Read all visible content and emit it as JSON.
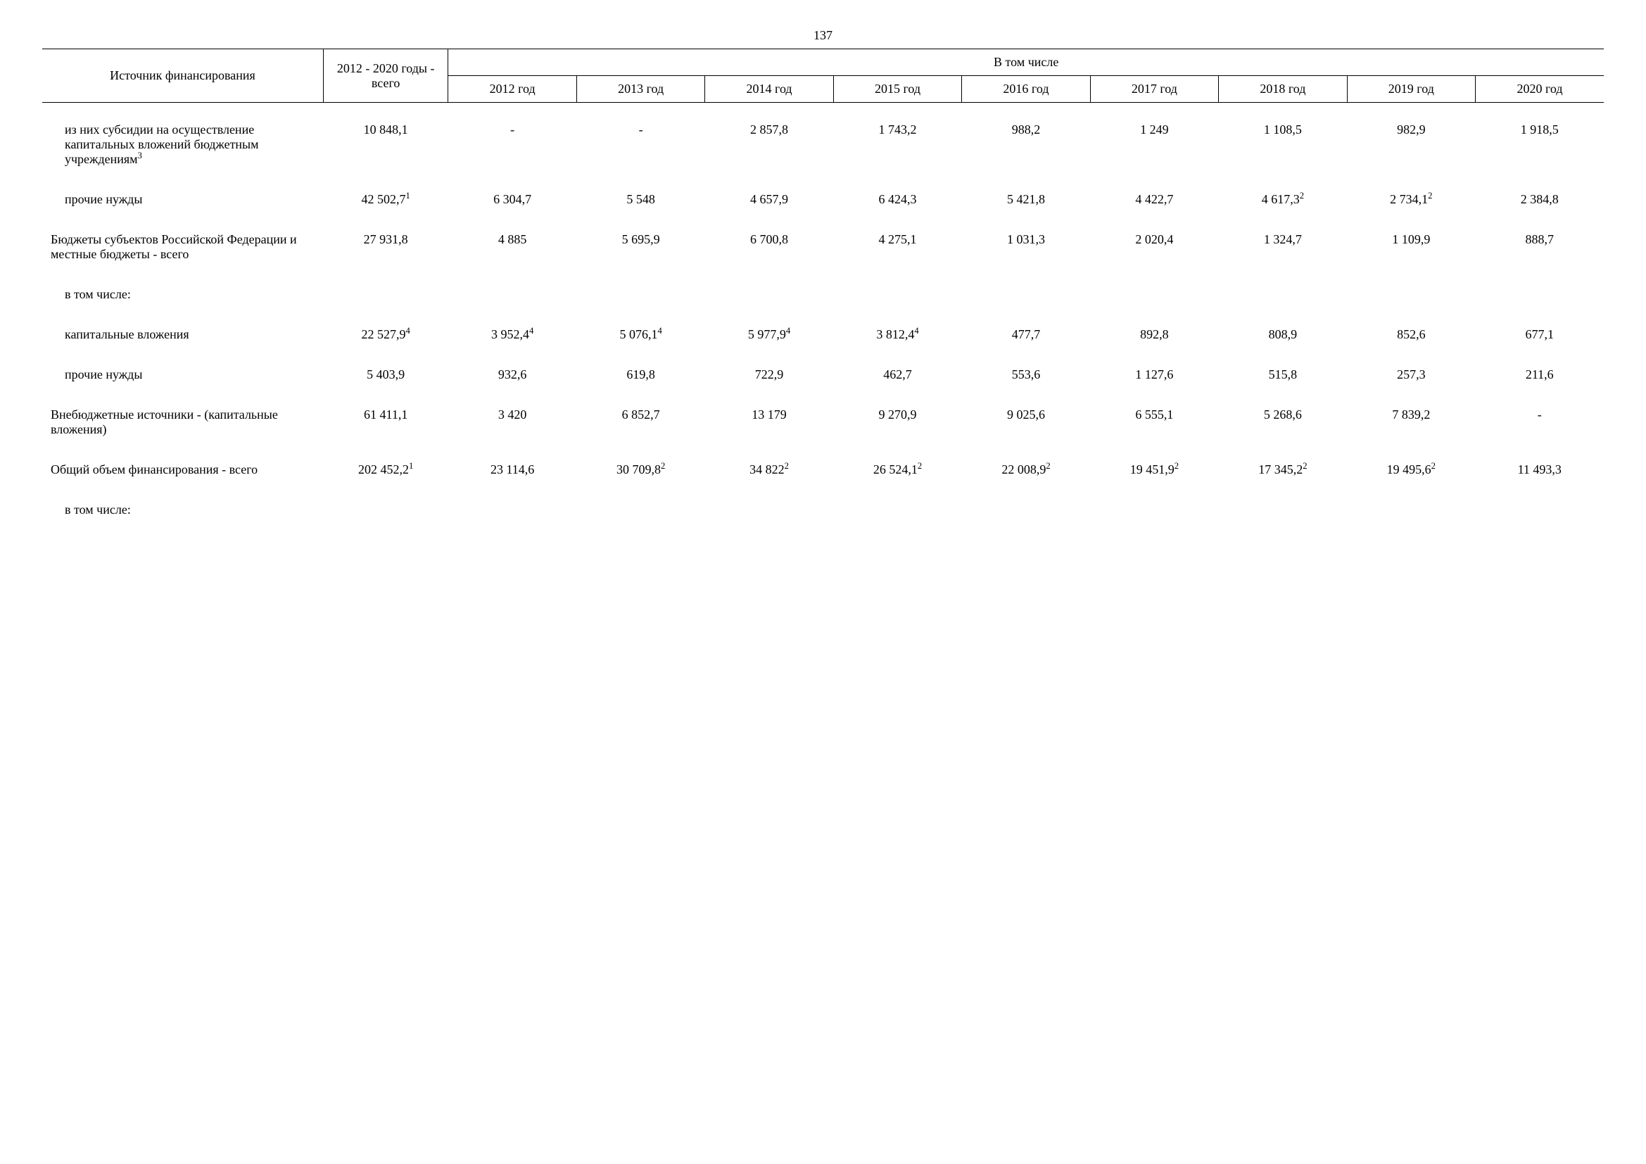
{
  "page_number": "137",
  "header": {
    "source_col": "Источник финансирования",
    "total_col": "2012 - 2020 годы - всего",
    "group_label": "В том числе",
    "years": [
      "2012 год",
      "2013 год",
      "2014 год",
      "2015 год",
      "2016 год",
      "2017 год",
      "2018 год",
      "2019 год",
      "2020 год"
    ]
  },
  "rows": [
    {
      "label": "из них субсидии на осуществление капитальных вложений бюджетным учреждениям",
      "label_sup": "3",
      "indent": 1,
      "cells": [
        {
          "v": "10 848,1"
        },
        {
          "v": "-"
        },
        {
          "v": "-"
        },
        {
          "v": "2 857,8"
        },
        {
          "v": "1 743,2"
        },
        {
          "v": "988,2"
        },
        {
          "v": "1 249"
        },
        {
          "v": "1 108,5"
        },
        {
          "v": "982,9"
        },
        {
          "v": "1 918,5"
        }
      ]
    },
    {
      "label": "прочие нужды",
      "indent": 1,
      "cells": [
        {
          "v": "42 502,7",
          "sup": "1"
        },
        {
          "v": "6 304,7"
        },
        {
          "v": "5 548"
        },
        {
          "v": "4 657,9"
        },
        {
          "v": "6 424,3"
        },
        {
          "v": "5 421,8"
        },
        {
          "v": "4 422,7"
        },
        {
          "v": "4 617,3",
          "sup": "2"
        },
        {
          "v": "2 734,1",
          "sup": "2"
        },
        {
          "v": "2 384,8"
        }
      ]
    },
    {
      "label": "Бюджеты субъектов Российской Федерации и местные бюджеты - всего",
      "indent": 0,
      "cells": [
        {
          "v": "27 931,8"
        },
        {
          "v": "4 885"
        },
        {
          "v": "5 695,9"
        },
        {
          "v": "6 700,8"
        },
        {
          "v": "4 275,1"
        },
        {
          "v": "1 031,3"
        },
        {
          "v": "2 020,4"
        },
        {
          "v": "1 324,7"
        },
        {
          "v": "1 109,9"
        },
        {
          "v": "888,7"
        }
      ]
    },
    {
      "label": "в том числе:",
      "indent": 1,
      "cells": []
    },
    {
      "label": "капитальные вложения",
      "indent": 1,
      "cells": [
        {
          "v": "22 527,9",
          "sup": "4"
        },
        {
          "v": "3 952,4",
          "sup": "4"
        },
        {
          "v": "5 076,1",
          "sup": "4"
        },
        {
          "v": "5 977,9",
          "sup": "4"
        },
        {
          "v": "3 812,4",
          "sup": "4"
        },
        {
          "v": "477,7"
        },
        {
          "v": "892,8"
        },
        {
          "v": "808,9"
        },
        {
          "v": "852,6"
        },
        {
          "v": "677,1"
        }
      ]
    },
    {
      "label": "прочие нужды",
      "indent": 1,
      "cells": [
        {
          "v": "5 403,9"
        },
        {
          "v": "932,6"
        },
        {
          "v": "619,8"
        },
        {
          "v": "722,9"
        },
        {
          "v": "462,7"
        },
        {
          "v": "553,6"
        },
        {
          "v": "1 127,6"
        },
        {
          "v": "515,8"
        },
        {
          "v": "257,3"
        },
        {
          "v": "211,6"
        }
      ]
    },
    {
      "label": "Внебюджетные источники - (капитальные вложения)",
      "indent": 0,
      "cells": [
        {
          "v": "61 411,1"
        },
        {
          "v": "3 420"
        },
        {
          "v": "6 852,7"
        },
        {
          "v": "13 179"
        },
        {
          "v": "9 270,9"
        },
        {
          "v": "9 025,6"
        },
        {
          "v": "6 555,1"
        },
        {
          "v": "5 268,6"
        },
        {
          "v": "7 839,2"
        },
        {
          "v": "-"
        }
      ]
    },
    {
      "label": "Общий объем финансирования - всего",
      "indent": 0,
      "cells": [
        {
          "v": "202 452,2",
          "sup": "1"
        },
        {
          "v": "23 114,6"
        },
        {
          "v": "30 709,8",
          "sup": "2"
        },
        {
          "v": "34 822",
          "sup": "2"
        },
        {
          "v": "26 524,1",
          "sup": "2"
        },
        {
          "v": "22 008,9",
          "sup": "2"
        },
        {
          "v": "19 451,9",
          "sup": "2"
        },
        {
          "v": "17 345,2",
          "sup": "2"
        },
        {
          "v": "19 495,6",
          "sup": "2"
        },
        {
          "v": "11 493,3"
        }
      ]
    },
    {
      "label": "в том числе:",
      "indent": 1,
      "cells": []
    }
  ],
  "style": {
    "font_family": "Times New Roman",
    "font_size_pt": 14,
    "text_color": "#000000",
    "background_color": "#ffffff",
    "border_color": "#000000"
  }
}
